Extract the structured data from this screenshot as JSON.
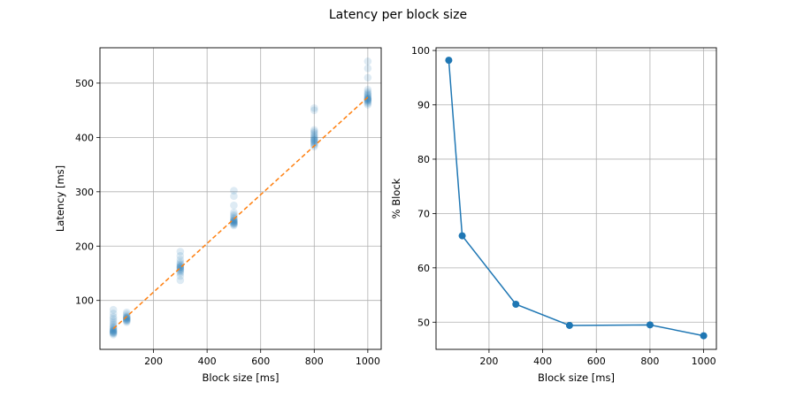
{
  "figure": {
    "title": "Latency per block size"
  },
  "chart_data": [
    {
      "type": "scatter",
      "xlabel": "Block size [ms]",
      "ylabel": "Latency [ms]",
      "xlim": [
        0,
        1050
      ],
      "ylim": [
        10,
        565
      ],
      "xticks": [
        200,
        400,
        600,
        800,
        1000
      ],
      "yticks": [
        100,
        200,
        300,
        400,
        500
      ],
      "grid": true,
      "colors": {
        "points": "#1f77b4",
        "fit": "#ff7f0e"
      },
      "series": [
        {
          "style": "points",
          "points": [
            [
              50,
              37
            ],
            [
              50,
              39
            ],
            [
              50,
              40
            ],
            [
              50,
              41
            ],
            [
              50,
              42
            ],
            [
              50,
              43
            ],
            [
              50,
              44
            ],
            [
              50,
              45
            ],
            [
              50,
              46
            ],
            [
              50,
              48
            ],
            [
              50,
              50
            ],
            [
              50,
              52
            ],
            [
              50,
              55
            ],
            [
              50,
              58
            ],
            [
              50,
              62
            ],
            [
              50,
              66
            ],
            [
              50,
              70
            ],
            [
              50,
              76
            ],
            [
              50,
              83
            ],
            [
              100,
              60
            ],
            [
              100,
              62
            ],
            [
              100,
              63
            ],
            [
              100,
              64
            ],
            [
              100,
              65
            ],
            [
              100,
              66
            ],
            [
              100,
              67
            ],
            [
              100,
              68
            ],
            [
              100,
              69
            ],
            [
              100,
              70
            ],
            [
              100,
              72
            ],
            [
              100,
              75
            ],
            [
              100,
              78
            ],
            [
              300,
              137
            ],
            [
              300,
              145
            ],
            [
              300,
              150
            ],
            [
              300,
              153
            ],
            [
              300,
              155
            ],
            [
              300,
              157
            ],
            [
              300,
              158
            ],
            [
              300,
              160
            ],
            [
              300,
              161
            ],
            [
              300,
              162
            ],
            [
              300,
              163
            ],
            [
              300,
              165
            ],
            [
              300,
              167
            ],
            [
              300,
              170
            ],
            [
              300,
              175
            ],
            [
              300,
              182
            ],
            [
              300,
              190
            ],
            [
              500,
              238
            ],
            [
              500,
              240
            ],
            [
              500,
              241
            ],
            [
              500,
              242
            ],
            [
              500,
              243
            ],
            [
              500,
              244
            ],
            [
              500,
              245
            ],
            [
              500,
              246
            ],
            [
              500,
              247
            ],
            [
              500,
              248
            ],
            [
              500,
              250
            ],
            [
              500,
              252
            ],
            [
              500,
              255
            ],
            [
              500,
              258
            ],
            [
              500,
              262
            ],
            [
              500,
              275
            ],
            [
              500,
              292
            ],
            [
              500,
              302
            ],
            [
              800,
              383
            ],
            [
              800,
              386
            ],
            [
              800,
              388
            ],
            [
              800,
              390
            ],
            [
              800,
              392
            ],
            [
              800,
              394
            ],
            [
              800,
              395
            ],
            [
              800,
              396
            ],
            [
              800,
              398
            ],
            [
              800,
              400
            ],
            [
              800,
              402
            ],
            [
              800,
              405
            ],
            [
              800,
              408
            ],
            [
              800,
              411
            ],
            [
              800,
              414
            ],
            [
              800,
              450
            ],
            [
              800,
              454
            ],
            [
              1000,
              460
            ],
            [
              1000,
              463
            ],
            [
              1000,
              465
            ],
            [
              1000,
              467
            ],
            [
              1000,
              468
            ],
            [
              1000,
              469
            ],
            [
              1000,
              470
            ],
            [
              1000,
              471
            ],
            [
              1000,
              472
            ],
            [
              1000,
              473
            ],
            [
              1000,
              475
            ],
            [
              1000,
              477
            ],
            [
              1000,
              479
            ],
            [
              1000,
              481
            ],
            [
              1000,
              484
            ],
            [
              1000,
              488
            ],
            [
              1000,
              510
            ],
            [
              1000,
              527
            ],
            [
              1000,
              540
            ]
          ]
        },
        {
          "style": "dashed-line",
          "x": [
            50,
            1000
          ],
          "y": [
            48,
            474
          ]
        }
      ]
    },
    {
      "type": "line",
      "xlabel": "Block size [ms]",
      "ylabel": "% Block",
      "xlim": [
        2.5,
        1047.5
      ],
      "ylim": [
        45.0,
        100.5
      ],
      "xticks": [
        200,
        400,
        600,
        800,
        1000
      ],
      "yticks": [
        50,
        60,
        70,
        80,
        90,
        100
      ],
      "grid": true,
      "colors": {
        "line": "#1f77b4"
      },
      "series": [
        {
          "x": [
            50,
            100,
            300,
            500,
            800,
            1000
          ],
          "y": [
            98.2,
            65.9,
            53.3,
            49.4,
            49.5,
            47.5
          ]
        }
      ]
    }
  ]
}
